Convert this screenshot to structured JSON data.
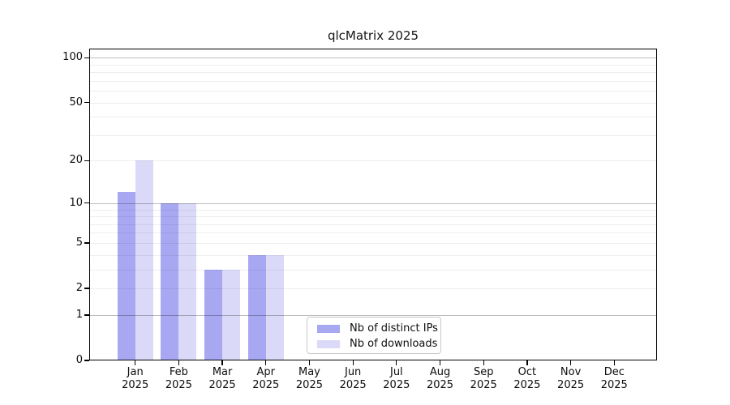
{
  "chart_data": {
    "type": "bar",
    "title": "qlcMatrix 2025",
    "categories": [
      {
        "month": "Jan",
        "year": "2025"
      },
      {
        "month": "Feb",
        "year": "2025"
      },
      {
        "month": "Mar",
        "year": "2025"
      },
      {
        "month": "Apr",
        "year": "2025"
      },
      {
        "month": "May",
        "year": "2025"
      },
      {
        "month": "Jun",
        "year": "2025"
      },
      {
        "month": "Jul",
        "year": "2025"
      },
      {
        "month": "Aug",
        "year": "2025"
      },
      {
        "month": "Sep",
        "year": "2025"
      },
      {
        "month": "Oct",
        "year": "2025"
      },
      {
        "month": "Nov",
        "year": "2025"
      },
      {
        "month": "Dec",
        "year": "2025"
      }
    ],
    "series": [
      {
        "name": "Nb of distinct IPs",
        "color": "#a8a8f2",
        "values": [
          12,
          10,
          3,
          4,
          null,
          null,
          null,
          null,
          null,
          null,
          null,
          null
        ]
      },
      {
        "name": "Nb of downloads",
        "color": "#dadaf8",
        "values": [
          20,
          10,
          3,
          4,
          null,
          null,
          null,
          null,
          null,
          null,
          null,
          null
        ]
      }
    ],
    "xlabel": "",
    "ylabel": "",
    "yaxis": {
      "scale": "log1p",
      "tick_values": [
        0,
        1,
        2,
        5,
        10,
        20,
        50,
        100
      ],
      "range": [
        0,
        115
      ]
    },
    "grid": {
      "orientation": "horizontal",
      "major_lines": [
        1,
        10,
        100
      ],
      "minor_lines": [
        2,
        3,
        4,
        5,
        6,
        7,
        8,
        9,
        20,
        30,
        40,
        50,
        60,
        70,
        80,
        90
      ]
    },
    "legend": {
      "position": "lower center",
      "border": "#c9c9c9"
    }
  }
}
